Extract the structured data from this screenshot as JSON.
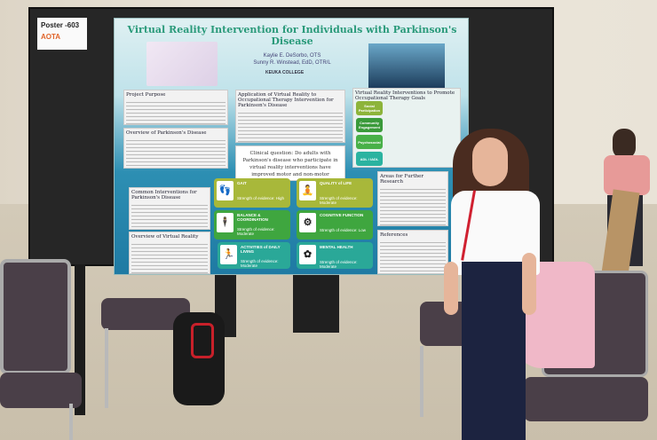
{
  "board_label": {
    "text": "Poster -603",
    "logo_text": "AOTA"
  },
  "poster": {
    "title": "Virtual Reality Intervention for Individuals with Parkinson's Disease",
    "authors": [
      "Kaylie E. DeSorbo, OTS",
      "Sunny R. Winstead, EdD, OTR/L"
    ],
    "college": "KEUKA COLLEGE",
    "sections": {
      "project_purpose": "Project Purpose",
      "overview_pd": "Overview of Parkinson's Disease",
      "common_interventions": "Common Interventions for Parkinson's Disease",
      "overview_vr": "Overview of Virtual Reality",
      "application": "Application of Virtual Reality to Occupational Therapy Intervention for Parkinson's Disease",
      "clinical_question": "Clinical question: Do adults with Parkinson's disease who participate in virtual reality interventions have improved motor and non-motor outcomes?",
      "vr_goals": "Virtual Reality Interventions to Promote Occupational Therapy Goals",
      "further_research": "Areas for Further Research",
      "references": "References"
    },
    "goals": [
      {
        "label": "Social Participation",
        "color": "#8db43a"
      },
      {
        "label": "Community Engagement",
        "color": "#3a9a3a"
      },
      {
        "label": "Psychosocial",
        "color": "#48b048"
      },
      {
        "label": "ADL / IADL",
        "color": "#2bb3a0"
      }
    ],
    "outcomes": [
      {
        "title": "GAIT",
        "evidence": "Strength of evidence: High",
        "icon": "footprints-icon",
        "color": "#a8b83a"
      },
      {
        "title": "QUALITY of LIFE",
        "evidence": "Strength of evidence: Moderate",
        "icon": "meditation-icon",
        "color": "#a8b83a"
      },
      {
        "title": "BALANCE & COORDINATION",
        "evidence": "Strength of evidence: Moderate",
        "icon": "balance-figure-icon",
        "color": "#3fa63f"
      },
      {
        "title": "COGNITIVE FUNCTION",
        "evidence": "Strength of evidence: Low",
        "icon": "brain-gear-icon",
        "color": "#3fa63f"
      },
      {
        "title": "ACTIVITIES of DAILY LIVING",
        "evidence": "Strength of evidence: Moderate",
        "icon": "daily-activity-icon",
        "color": "#2aa898"
      },
      {
        "title": "MENTAL HEALTH",
        "evidence": "Strength of evidence: Moderate",
        "icon": "mental-health-icon",
        "color": "#2aa898"
      }
    ]
  }
}
